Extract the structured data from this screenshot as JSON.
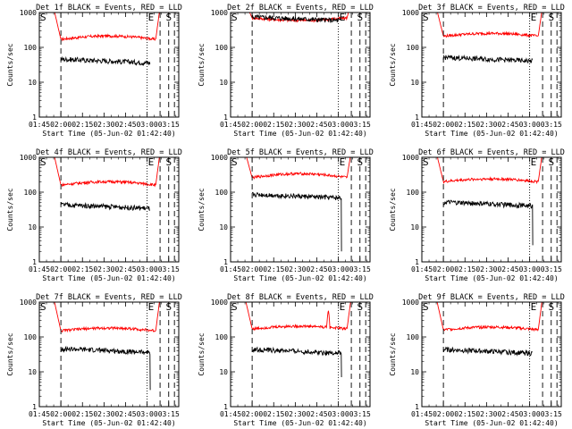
{
  "figure": {
    "panel_titles": [
      "Det 1f BLACK = Events, RED = LLD",
      "Det 2f BLACK = Events, RED = LLD",
      "Det 3f BLACK = Events, RED = LLD",
      "Det 4f BLACK = Events, RED = LLD",
      "Det 5f BLACK = Events, RED = LLD",
      "Det 6f BLACK = Events, RED = LLD",
      "Det 7f BLACK = Events, RED = LLD",
      "Det 8f BLACK = Events, RED = LLD",
      "Det 9f BLACK = Events, RED = LLD"
    ],
    "xlabel": "Start Time (05-Jun-02 01:42:40)",
    "ylabel": "Counts/sec",
    "marker_labels": {
      "start_left": "S",
      "end": "E",
      "start_right": "S"
    },
    "colors": {
      "events": "#000000",
      "lld": "#ff0000",
      "axes": "#000000",
      "background": "#ffffff"
    }
  },
  "chart_data": {
    "type": "line",
    "layout": "3x3 grid",
    "x_unit": "time of day (hh:mm), 05-Jun-02",
    "xlim": [
      "01:45",
      "03:22"
    ],
    "x_ticks": [
      "01:45",
      "02:00",
      "02:15",
      "02:30",
      "02:45",
      "03:00",
      "03:15"
    ],
    "yscale": "log",
    "ylim": [
      1,
      1000
    ],
    "y_ticks": [
      1,
      10,
      100,
      1000
    ],
    "y_tick_labels": [
      "1",
      "10",
      "100",
      "1000"
    ],
    "markers": [
      {
        "label": "S",
        "time": "02:00",
        "style": "dashed"
      },
      {
        "label": "E",
        "time": "03:00",
        "style": "dotted"
      },
      {
        "label": "",
        "time": "03:09",
        "style": "dashed"
      },
      {
        "label": "S",
        "time": "03:15",
        "style": "dashed"
      },
      {
        "label": "",
        "time": "03:19",
        "style": "dashed"
      }
    ],
    "series_names": [
      "Events",
      "LLD"
    ],
    "panels": [
      {
        "detector": "1f",
        "lld_level": 170,
        "lld_hump": 1.25,
        "events_level": 40,
        "events_drop_to": null,
        "spike_time": null,
        "spike_value": null
      },
      {
        "detector": "2f",
        "lld_level": 700,
        "lld_hump": 0.85,
        "events_level": 650,
        "events_drop_to": null,
        "spike_time": null,
        "spike_value": null
      },
      {
        "detector": "3f",
        "lld_level": 210,
        "lld_hump": 1.2,
        "events_level": 45,
        "events_drop_to": null,
        "spike_time": null,
        "spike_value": null
      },
      {
        "detector": "4f",
        "lld_level": 160,
        "lld_hump": 1.25,
        "events_level": 38,
        "events_drop_to": null,
        "spike_time": null,
        "spike_value": null
      },
      {
        "detector": "5f",
        "lld_level": 260,
        "lld_hump": 1.3,
        "events_level": 75,
        "events_drop_to": 2,
        "spike_time": null,
        "spike_value": null
      },
      {
        "detector": "6f",
        "lld_level": 200,
        "lld_hump": 1.2,
        "events_level": 45,
        "events_drop_to": 3,
        "spike_time": null,
        "spike_value": null
      },
      {
        "detector": "7f",
        "lld_level": 150,
        "lld_hump": 1.2,
        "events_level": 40,
        "events_drop_to": 3,
        "spike_time": null,
        "spike_value": null
      },
      {
        "detector": "8f",
        "lld_level": 170,
        "lld_hump": 1.2,
        "events_level": 38,
        "events_drop_to": 7,
        "spike_time": "02:53",
        "spike_value": 600
      },
      {
        "detector": "9f",
        "lld_level": 160,
        "lld_hump": 1.2,
        "events_level": 38,
        "events_drop_to": null,
        "spike_time": null,
        "spike_value": null
      }
    ]
  }
}
